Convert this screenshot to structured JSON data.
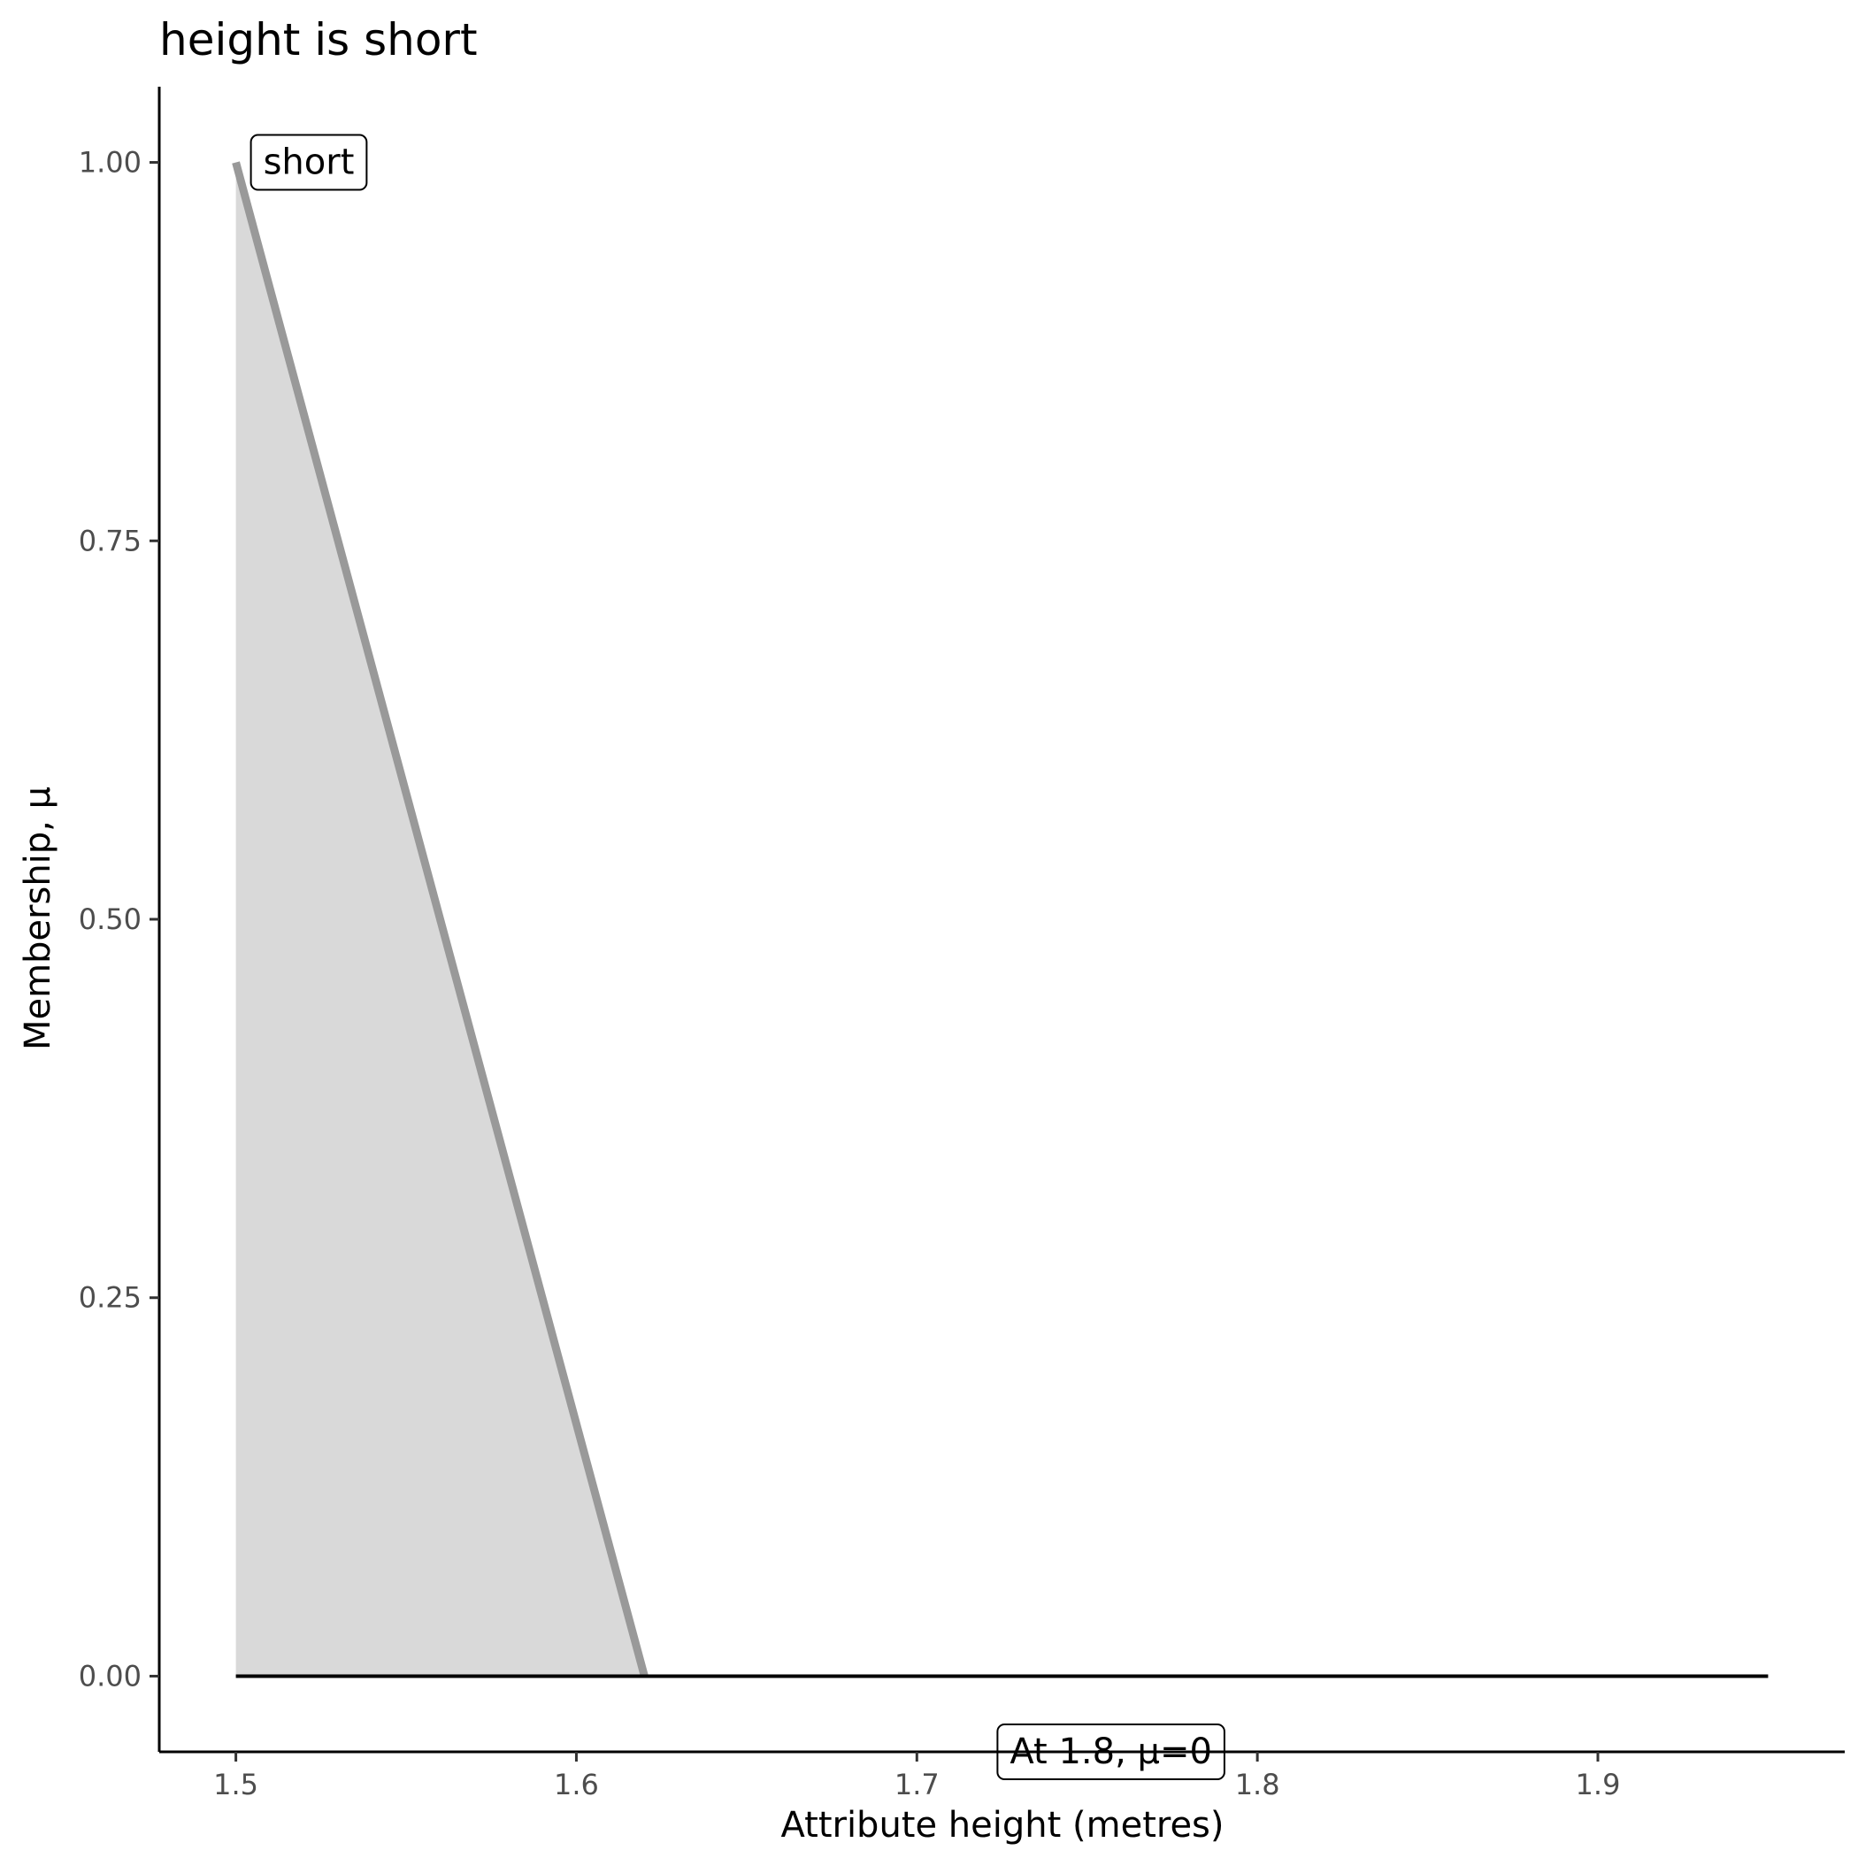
{
  "chart_data": {
    "type": "line",
    "title": "height is short",
    "xlabel": "Attribute height (metres)",
    "ylabel": "Membership, μ",
    "xlim": [
      1.4775,
      1.9725
    ],
    "ylim": [
      -0.05,
      1.05
    ],
    "x_ticks": [
      1.5,
      1.6,
      1.7,
      1.8,
      1.9
    ],
    "x_tick_labels": [
      "1.5",
      "1.6",
      "1.7",
      "1.8",
      "1.9"
    ],
    "y_ticks": [
      0,
      0.25,
      0.5,
      0.75,
      1
    ],
    "y_tick_labels": [
      "0.00",
      "0.25",
      "0.50",
      "0.75",
      "1.00"
    ],
    "grid": false,
    "series": [
      {
        "color": "#999999",
        "fill": "#d9d9d9",
        "x": [
          1.5,
          1.62
        ],
        "y": [
          1,
          0
        ]
      }
    ],
    "baseline": {
      "x": [
        1.5,
        1.95
      ],
      "y": [
        0,
        0
      ],
      "color": "#000000"
    },
    "annotations": [
      {
        "text": "short",
        "x": 1.5,
        "y": 1,
        "anchor": "left"
      },
      {
        "text": "At 1.8, μ=0",
        "x": 1.757,
        "y": -0.05,
        "anchor": "middle"
      }
    ]
  }
}
